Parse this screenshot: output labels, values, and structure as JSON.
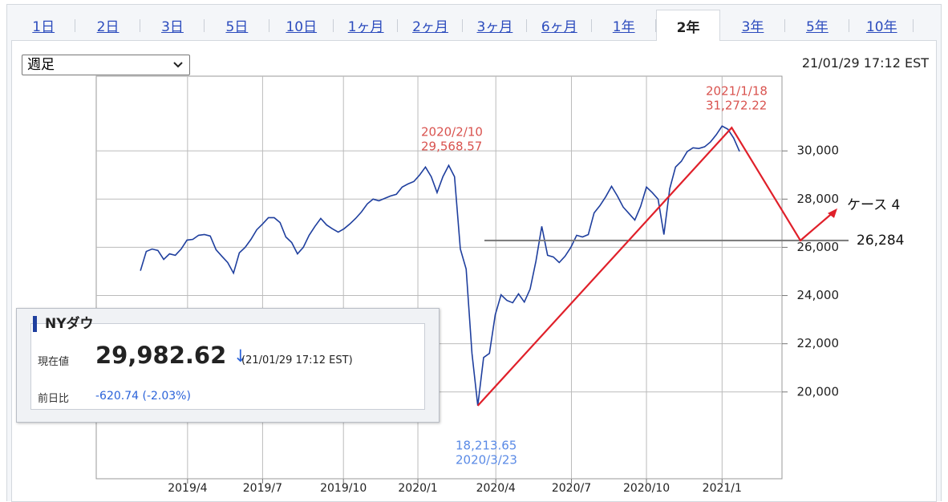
{
  "tabs": [
    "1日",
    "2日",
    "3日",
    "5日",
    "10日",
    "1ヶ月",
    "2ヶ月",
    "3ヶ月",
    "6ヶ月",
    "1年",
    "2年",
    "3年",
    "5年",
    "10年"
  ],
  "selected_tab": 10,
  "dropdown": "週足",
  "timestamp": "21/01/29 17:12 EST",
  "chart_data": {
    "type": "line",
    "series": [
      {
        "name": "NYダウ",
        "color": "#1f3f9e",
        "values": [
          25030,
          25830,
          25930,
          25870,
          25500,
          25730,
          25670,
          25930,
          26300,
          26330,
          26500,
          26530,
          26470,
          25900,
          25630,
          25370,
          24930,
          25770,
          26000,
          26330,
          26730,
          26970,
          27230,
          27230,
          27030,
          26430,
          26200,
          25730,
          26000,
          26500,
          26870,
          27200,
          26930,
          26770,
          26630,
          26770,
          26970,
          27200,
          27470,
          27800,
          28000,
          27930,
          28030,
          28130,
          28200,
          28500,
          28630,
          28730,
          29000,
          29330,
          28930,
          28270,
          28930,
          29400,
          28930,
          25930,
          25100,
          21600,
          19430,
          21430,
          21600,
          23200,
          24030,
          23800,
          23700,
          24070,
          23730,
          24270,
          25430,
          26870,
          25670,
          25600,
          25370,
          25630,
          26000,
          26500,
          26430,
          26530,
          27430,
          27730,
          28100,
          28530,
          28130,
          27670,
          27400,
          27130,
          27700,
          28500,
          28270,
          28000,
          26530,
          28430,
          29330,
          29570,
          29970,
          30130,
          30100,
          30170,
          30370,
          30670,
          31030,
          30900,
          30530,
          29980
        ]
      }
    ],
    "xlim": [
      -7.6,
      110.3
    ],
    "xticks": [
      {
        "value": 8.1,
        "label": "2019/4"
      },
      {
        "value": 21.0,
        "label": "2019/7"
      },
      {
        "value": 34.9,
        "label": "2019/10"
      },
      {
        "value": 47.7,
        "label": "2020/1"
      },
      {
        "value": 61.1,
        "label": "2020/4"
      },
      {
        "value": 74.1,
        "label": "2020/7"
      },
      {
        "value": 87.0,
        "label": "2020/10"
      },
      {
        "value": 100.0,
        "label": "2021/1"
      }
    ],
    "ylim": [
      16400,
      33100
    ],
    "yticks": [
      {
        "value": 20000,
        "label": "20,000"
      },
      {
        "value": 22000,
        "label": "22,000"
      },
      {
        "value": 24000,
        "label": "24,000"
      },
      {
        "value": 26000,
        "label": "26,000"
      },
      {
        "value": 28000,
        "label": "28,000"
      },
      {
        "value": 30000,
        "label": "30,000"
      }
    ],
    "grid": true,
    "annotations": [
      {
        "lines": [
          "2020/2/10",
          "29,568.57"
        ],
        "color": "#d9534f"
      },
      {
        "lines": [
          "2021/1/18",
          "31,272.22"
        ],
        "color": "#d9534f"
      },
      {
        "lines": [
          "18,213.65",
          "2020/3/23"
        ],
        "color": "#5a8ae6"
      }
    ],
    "target": {
      "value": 26284,
      "label": "26,284",
      "scenario": "ケース 4",
      "color": "#e0202a"
    }
  },
  "quote_box": {
    "title": "NYダウ",
    "price_label": "現在値",
    "price": "29,982.62",
    "arrow": "↓",
    "time": "(21/01/29 17:12 EST)",
    "change_label": "前日比",
    "change": "-620.74 (-2.03%)"
  }
}
